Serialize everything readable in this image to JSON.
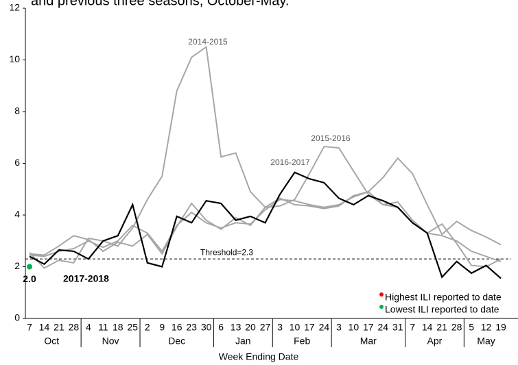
{
  "chart_data": {
    "type": "line",
    "title": "and previous three seasons, October-May.",
    "x_label": "Week Ending Date",
    "category_groups": [
      {
        "name": "Oct",
        "categories": [
          "7",
          "14",
          "21",
          "28"
        ]
      },
      {
        "name": "Nov",
        "categories": [
          "4",
          "11",
          "18",
          "25"
        ]
      },
      {
        "name": "Dec",
        "categories": [
          "2",
          "9",
          "16",
          "23",
          "30"
        ]
      },
      {
        "name": "Jan",
        "categories": [
          "6",
          "13",
          "20",
          "27"
        ]
      },
      {
        "name": "Feb",
        "categories": [
          "3",
          "10",
          "17",
          "24"
        ]
      },
      {
        "name": "Mar",
        "categories": [
          "3",
          "10",
          "17",
          "24",
          "31"
        ]
      },
      {
        "name": "Apr",
        "categories": [
          "7",
          "14",
          "21",
          "28"
        ]
      },
      {
        "name": "May",
        "categories": [
          "5",
          "12",
          "19"
        ]
      }
    ],
    "series": [
      {
        "name": "2014-2015",
        "color": "#a6a6a6",
        "values": [
          2.55,
          1.95,
          2.25,
          2.15,
          3.1,
          3.0,
          2.8,
          3.5,
          4.6,
          5.5,
          8.8,
          10.1,
          10.5,
          6.25,
          6.4,
          4.9,
          4.3,
          4.65,
          4.4,
          4.35,
          4.25,
          4.35,
          4.75,
          4.9,
          4.4,
          4.5,
          3.8,
          3.3,
          3.65,
          2.9,
          2.05,
          2.0,
          2.3
        ]
      },
      {
        "name": "2015-2016",
        "color": "#a6a6a6",
        "values": [
          2.5,
          2.45,
          2.8,
          3.2,
          3.05,
          2.6,
          2.95,
          2.8,
          3.25,
          2.5,
          3.55,
          4.45,
          3.8,
          3.45,
          3.9,
          3.6,
          4.3,
          4.35,
          4.6,
          5.6,
          6.65,
          6.6,
          5.7,
          4.8,
          4.4,
          4.3,
          3.7,
          3.3,
          3.2,
          3.0,
          2.6,
          2.4,
          2.2
        ]
      },
      {
        "name": "2016-2017",
        "color": "#a6a6a6",
        "values": [
          2.45,
          2.4,
          2.6,
          2.7,
          3.0,
          2.75,
          3.0,
          3.6,
          3.3,
          2.6,
          3.6,
          4.1,
          3.7,
          3.5,
          3.7,
          3.65,
          4.2,
          4.6,
          4.55,
          4.4,
          4.3,
          4.4,
          4.7,
          4.9,
          5.45,
          6.2,
          5.6,
          4.4,
          3.25,
          3.75,
          3.4,
          3.15,
          2.85
        ]
      },
      {
        "name": "2017-2018",
        "color": "#000000",
        "values": [
          2.4,
          2.1,
          2.65,
          2.6,
          2.3,
          3.0,
          3.2,
          4.4,
          2.15,
          2.0,
          3.95,
          3.7,
          4.55,
          4.45,
          3.8,
          3.95,
          3.7,
          4.8,
          5.65,
          5.4,
          5.25,
          4.65,
          4.4,
          4.75,
          4.55,
          4.3,
          3.7,
          3.3,
          1.6,
          2.2,
          1.75,
          2.05,
          1.55
        ]
      }
    ],
    "threshold": {
      "value": 2.3,
      "label": "Threshold=2.3"
    },
    "lowest_marker": {
      "value": 2.0,
      "value_label": "2.0",
      "color": "#00b050"
    },
    "legend": [
      {
        "name": "Highest ILI reported to date",
        "color": "#ff0000"
      },
      {
        "name": "Lowest ILI reported to date",
        "color": "#00b050"
      }
    ],
    "ylim": [
      0,
      12
    ],
    "yticks": [
      0,
      2,
      4,
      6,
      8,
      10,
      12
    ],
    "grid": false
  }
}
